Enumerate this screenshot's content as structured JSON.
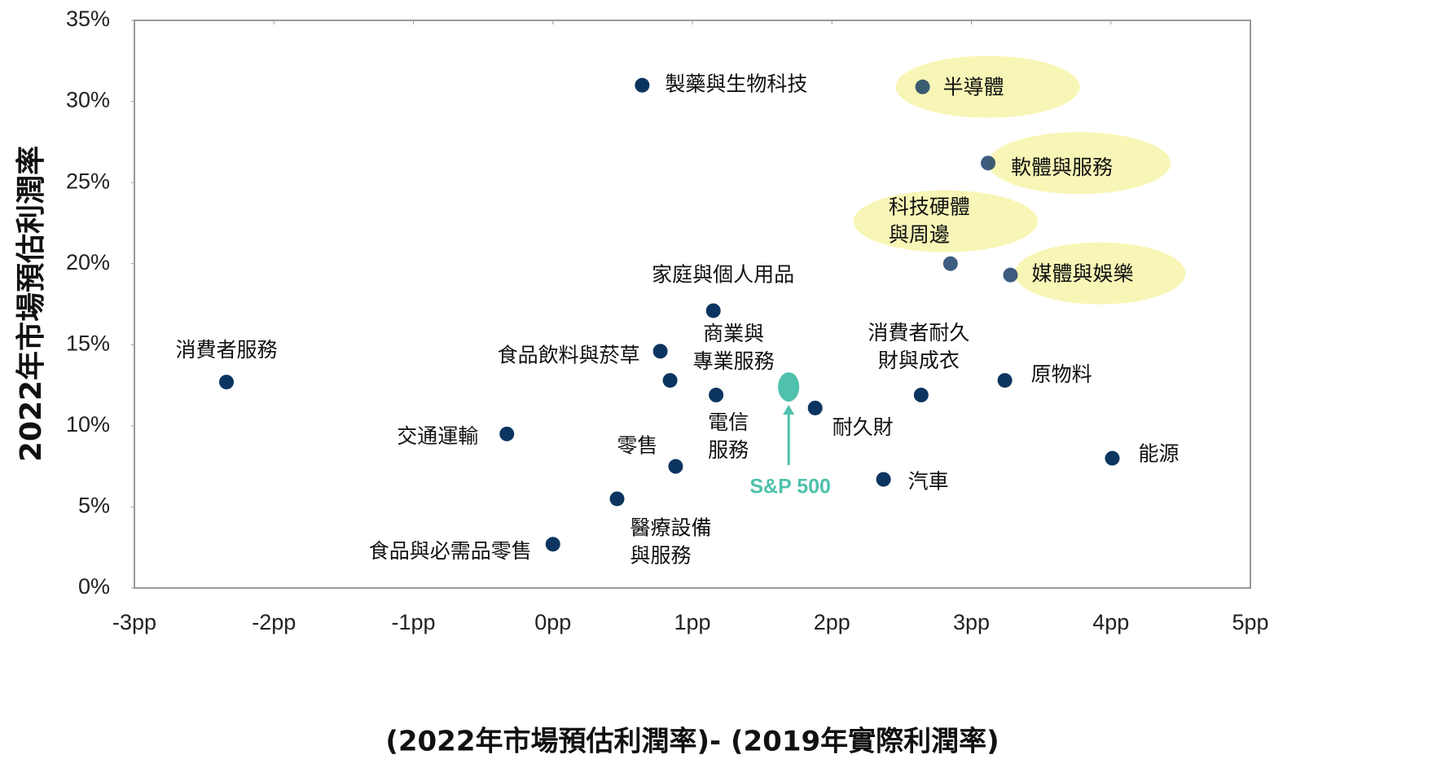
{
  "chart_data": {
    "type": "scatter",
    "x_label": "(2022年市場預估利潤率)- (2019年實際利潤率)",
    "y_label": "2022年市場預估利潤率",
    "xlim": [
      -3,
      5
    ],
    "ylim": [
      0,
      35
    ],
    "xticks": [
      {
        "value": -3,
        "label": "-3pp"
      },
      {
        "value": -2,
        "label": "-2pp"
      },
      {
        "value": -1,
        "label": "-1pp"
      },
      {
        "value": 0,
        "label": "0pp"
      },
      {
        "value": 1,
        "label": "1pp"
      },
      {
        "value": 2,
        "label": "2pp"
      },
      {
        "value": 3,
        "label": "3pp"
      },
      {
        "value": 4,
        "label": "4pp"
      },
      {
        "value": 5,
        "label": "5pp"
      }
    ],
    "yticks": [
      {
        "value": 0,
        "label": "0%"
      },
      {
        "value": 5,
        "label": "5%"
      },
      {
        "value": 10,
        "label": "10%"
      },
      {
        "value": 15,
        "label": "15%"
      },
      {
        "value": 20,
        "label": "20%"
      },
      {
        "value": 25,
        "label": "25%"
      },
      {
        "value": 30,
        "label": "30%"
      },
      {
        "value": 35,
        "label": "35%"
      }
    ],
    "grid": false,
    "color": "#0b3560",
    "highlight_color": "#f8f6b6",
    "points": [
      {
        "label": [
          "製藥與生物科技"
        ],
        "x": 0.64,
        "y": 31.0
      },
      {
        "label": [
          "半導體"
        ],
        "x": 2.65,
        "y": 30.9,
        "highlight": true
      },
      {
        "label": [
          "軟體與服務"
        ],
        "x": 3.12,
        "y": 26.2,
        "highlight": true
      },
      {
        "label": [
          "科技硬體",
          "與周邊"
        ],
        "x": 2.85,
        "y": 20.0,
        "highlight": true
      },
      {
        "label": [
          "媒體與娛樂"
        ],
        "x": 3.28,
        "y": 19.3,
        "highlight": true
      },
      {
        "label": [
          "家庭與個人用品"
        ],
        "x": 1.15,
        "y": 17.1
      },
      {
        "label": [
          "消費者服務"
        ],
        "x": -2.34,
        "y": 12.7
      },
      {
        "label": [
          "食品飲料與菸草"
        ],
        "x": 0.77,
        "y": 14.6
      },
      {
        "label": [
          "商業與",
          "專業服務"
        ],
        "x": 0.84,
        "y": 12.8
      },
      {
        "label": [
          "電信",
          "服務"
        ],
        "x": 1.17,
        "y": 11.9
      },
      {
        "label": [
          "耐久財"
        ],
        "x": 1.88,
        "y": 11.1
      },
      {
        "label": [
          "消費者耐久",
          "財與成衣"
        ],
        "x": 2.64,
        "y": 11.9
      },
      {
        "label": [
          "原物料"
        ],
        "x": 3.24,
        "y": 12.8
      },
      {
        "label": [
          "交通運輸"
        ],
        "x": -0.33,
        "y": 9.5
      },
      {
        "label": [
          "零售"
        ],
        "x": 0.88,
        "y": 7.5
      },
      {
        "label": [
          "能源"
        ],
        "x": 4.01,
        "y": 8.0
      },
      {
        "label": [
          "汽車"
        ],
        "x": 2.37,
        "y": 6.7
      },
      {
        "label": [
          "醫療設備",
          "與服務"
        ],
        "x": 0.46,
        "y": 5.5
      },
      {
        "label": [
          "食品與必需品零售"
        ],
        "x": 0.0,
        "y": 2.7
      }
    ],
    "benchmark": {
      "label": "S&P 500",
      "x": 1.69,
      "y": 12.4,
      "color": "#4fc1ac"
    }
  }
}
